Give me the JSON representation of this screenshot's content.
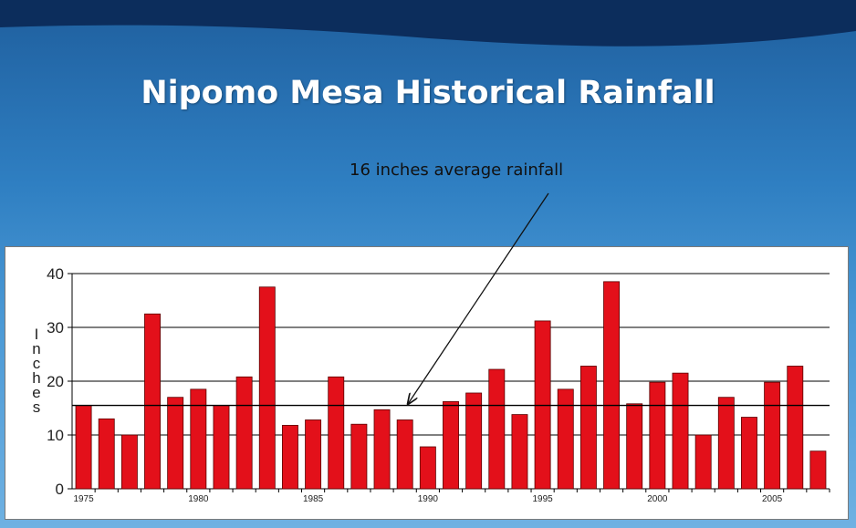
{
  "slide": {
    "title": "Nipomo Mesa Historical Rainfall",
    "annotation": "16 inches average rainfall"
  },
  "colors": {
    "bar": "#e3101a",
    "bar_stroke": "#5a0000",
    "grid": "#000000",
    "average_line": "#000000"
  },
  "chart_data": {
    "type": "bar",
    "title": "Nipomo Mesa Historical Rainfall",
    "xlabel": "",
    "ylabel": "Inches",
    "ylabel_letters": [
      "I",
      "n",
      "c",
      "h",
      "e",
      "s"
    ],
    "ylim": [
      0,
      40
    ],
    "yticks": [
      0,
      10,
      20,
      30,
      40
    ],
    "average": 15.5,
    "average_label": "16 inches average rainfall",
    "categories": [
      1975,
      1976,
      1977,
      1978,
      1979,
      1980,
      1981,
      1982,
      1983,
      1984,
      1985,
      1986,
      1987,
      1988,
      1989,
      1990,
      1991,
      1992,
      1993,
      1994,
      1995,
      1996,
      1997,
      1998,
      1999,
      2000,
      2001,
      2002,
      2003,
      2004,
      2005,
      2006,
      2007
    ],
    "x_tick_labels": [
      "1975",
      "1980",
      "1985",
      "1990",
      "1995",
      "2000",
      "2005"
    ],
    "x_tick_indices": [
      0,
      5,
      10,
      15,
      20,
      25,
      30
    ],
    "values": [
      15.5,
      13,
      10,
      32.5,
      17,
      18.5,
      15.5,
      20.8,
      37.5,
      11.8,
      12.8,
      20.8,
      12,
      14.7,
      12.8,
      7.8,
      16.2,
      17.8,
      22.2,
      13.8,
      31.2,
      18.5,
      22.8,
      38.5,
      15.8,
      19.8,
      21.5,
      10,
      17,
      13.3,
      19.8,
      22.8,
      7
    ]
  }
}
